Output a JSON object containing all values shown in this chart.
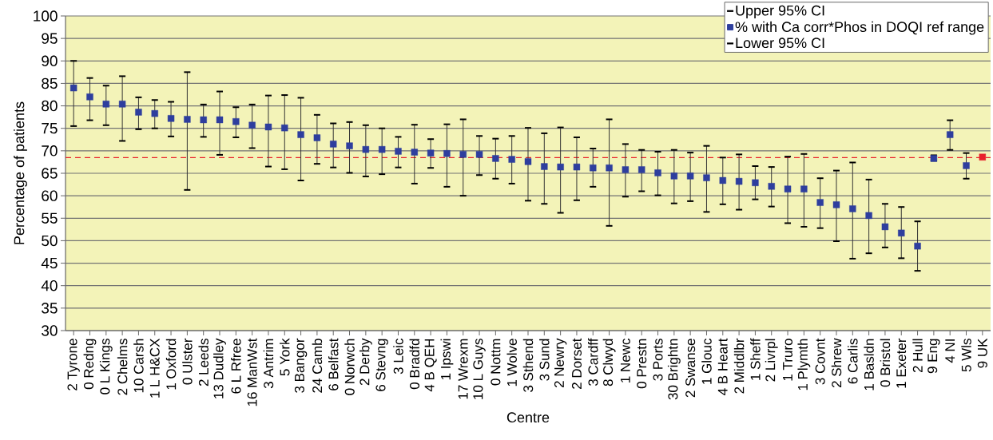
{
  "chart_data": {
    "type": "scatter",
    "xlabel": "Centre",
    "ylabel": "Percentage of patients",
    "categories": [
      "2 Tyrone",
      "0 Redng",
      "0 L Kings",
      "2 Chelms",
      "10 Carsh",
      "1 L H&CX",
      "1 Oxford",
      "0 Ulster",
      "2 Leeds",
      "13 Dudley",
      "6 L Rfree",
      "16 ManWst",
      "3 Antrim",
      "5 York",
      "3 Bangor",
      "24 Camb",
      "6 Belfast",
      "0 Norwch",
      "2 Derby",
      "6 Stevng",
      "3 Leic",
      "0 Bradfd",
      "4 B QEH",
      "1 Ipswi",
      "17 Wrexm",
      "10 L Guys",
      "0 Nottm",
      "1 Wolve",
      "3 Sthend",
      "3 Sund",
      "2 Newry",
      "2 Dorset",
      "3 Cardff",
      "8 Clwyd",
      "1 Newc",
      "0 Prestn",
      "3 Ports",
      "30 Brightn",
      "2 Swanse",
      "1 Glouc",
      "4 B Heart",
      "2 Middlbr",
      "1 Sheff",
      "2 Livrpl",
      "1 Truro",
      "1 Plymth",
      "3 Covnt",
      "2 Shrew",
      "6 Carlis",
      "1 Basldn",
      "0 Bristol",
      "1 Exeter",
      "2 Hull",
      "9 Eng",
      "4 NI",
      "5 Wls",
      "9 UK"
    ],
    "annotations": [
      "Upper 95% CI",
      "Lower 95% CI"
    ],
    "series": [
      {
        "name": "% with Ca corr*Phos in DOQI ref range",
        "color": "#2e3e9e",
        "colors": [
          "#2e3e9e",
          "#2e3e9e",
          "#2e3e9e",
          "#2e3e9e",
          "#2e3e9e",
          "#2e3e9e",
          "#2e3e9e",
          "#2e3e9e",
          "#2e3e9e",
          "#2e3e9e",
          "#2e3e9e",
          "#2e3e9e",
          "#2e3e9e",
          "#2e3e9e",
          "#2e3e9e",
          "#2e3e9e",
          "#2e3e9e",
          "#2e3e9e",
          "#2e3e9e",
          "#2e3e9e",
          "#2e3e9e",
          "#2e3e9e",
          "#2e3e9e",
          "#2e3e9e",
          "#2e3e9e",
          "#2e3e9e",
          "#2e3e9e",
          "#2e3e9e",
          "#2e3e9e",
          "#2e3e9e",
          "#2e3e9e",
          "#2e3e9e",
          "#2e3e9e",
          "#2e3e9e",
          "#2e3e9e",
          "#2e3e9e",
          "#2e3e9e",
          "#2e3e9e",
          "#2e3e9e",
          "#2e3e9e",
          "#2e3e9e",
          "#2e3e9e",
          "#2e3e9e",
          "#2e3e9e",
          "#2e3e9e",
          "#2e3e9e",
          "#2e3e9e",
          "#2e3e9e",
          "#2e3e9e",
          "#2e3e9e",
          "#2e3e9e",
          "#2e3e9e",
          "#2e3e9e",
          "#2e3e9e",
          "#2e3e9e",
          "#2e3e9e",
          "#e8202a"
        ],
        "values": [
          84,
          82,
          80.4,
          80.4,
          78.6,
          78.3,
          77.2,
          77.0,
          76.9,
          76.9,
          76.5,
          75.7,
          75.3,
          75.1,
          73.6,
          72.9,
          71.5,
          71.1,
          70.3,
          70.3,
          69.9,
          69.7,
          69.5,
          69.4,
          69.2,
          69.2,
          68.3,
          68.1,
          67.6,
          66.5,
          66.4,
          66.4,
          66.2,
          66.2,
          65.8,
          65.8,
          65.1,
          64.4,
          64.4,
          64.0,
          63.4,
          63.2,
          62.9,
          62.1,
          61.5,
          61.5,
          58.5,
          58.0,
          57.1,
          55.6,
          53.1,
          51.7,
          48.8,
          68.3,
          73.6,
          66.7,
          68.6
        ],
        "errors": [
          [
            75.5,
            90
          ],
          [
            76.8,
            86.2
          ],
          [
            75.7,
            84.5
          ],
          [
            72.2,
            86.6
          ],
          [
            74.8,
            81.9
          ],
          [
            75.0,
            81.3
          ],
          [
            73.2,
            80.9
          ],
          [
            61.3,
            87.5
          ],
          [
            73.1,
            80.3
          ],
          [
            69.1,
            83.2
          ],
          [
            73.0,
            79.7
          ],
          [
            70.6,
            80.3
          ],
          [
            66.5,
            82.3
          ],
          [
            65.9,
            82.4
          ],
          [
            63.4,
            81.8
          ],
          [
            67.1,
            78.0
          ],
          [
            66.3,
            76.1
          ],
          [
            65.1,
            76.4
          ],
          [
            64.3,
            75.7
          ],
          [
            64.8,
            75.0
          ],
          [
            66.3,
            73.1
          ],
          [
            62.7,
            75.8
          ],
          [
            66.2,
            72.6
          ],
          [
            62.0,
            75.9
          ],
          [
            60.0,
            77.0
          ],
          [
            64.6,
            73.3
          ],
          [
            63.8,
            72.7
          ],
          [
            62.7,
            73.3
          ],
          [
            58.9,
            75.1
          ],
          [
            58.2,
            73.9
          ],
          [
            56.2,
            75.2
          ],
          [
            59.0,
            73.0
          ],
          [
            62.0,
            70.5
          ],
          [
            53.3,
            77.0
          ],
          [
            59.8,
            71.5
          ],
          [
            61.0,
            70.2
          ],
          [
            60.1,
            69.8
          ],
          [
            58.3,
            70.2
          ],
          [
            58.8,
            69.6
          ],
          [
            56.4,
            71.1
          ],
          [
            58.1,
            68.5
          ],
          [
            56.9,
            69.2
          ],
          [
            59.2,
            66.6
          ],
          [
            57.6,
            66.4
          ],
          [
            53.9,
            68.7
          ],
          [
            53.1,
            69.3
          ],
          [
            52.8,
            63.9
          ],
          [
            49.9,
            65.6
          ],
          [
            46.0,
            67.4
          ],
          [
            47.2,
            63.6
          ],
          [
            48.5,
            58.2
          ],
          [
            46.1,
            57.5
          ],
          [
            43.3,
            54.3
          ],
          [
            67.8,
            69.0
          ],
          [
            70.2,
            76.8
          ],
          [
            63.8,
            69.5
          ],
          null
        ]
      }
    ],
    "marker": "square",
    "ylim": [
      30,
      100
    ],
    "yticks": [
      30,
      35,
      40,
      45,
      50,
      55,
      60,
      65,
      70,
      75,
      80,
      85,
      90,
      95,
      100
    ],
    "grid": "y",
    "legend": "top right",
    "ref_lines": [
      {
        "axis": "y",
        "value": 68.5,
        "color": "#e8202a",
        "line_style": "dashed"
      }
    ]
  }
}
